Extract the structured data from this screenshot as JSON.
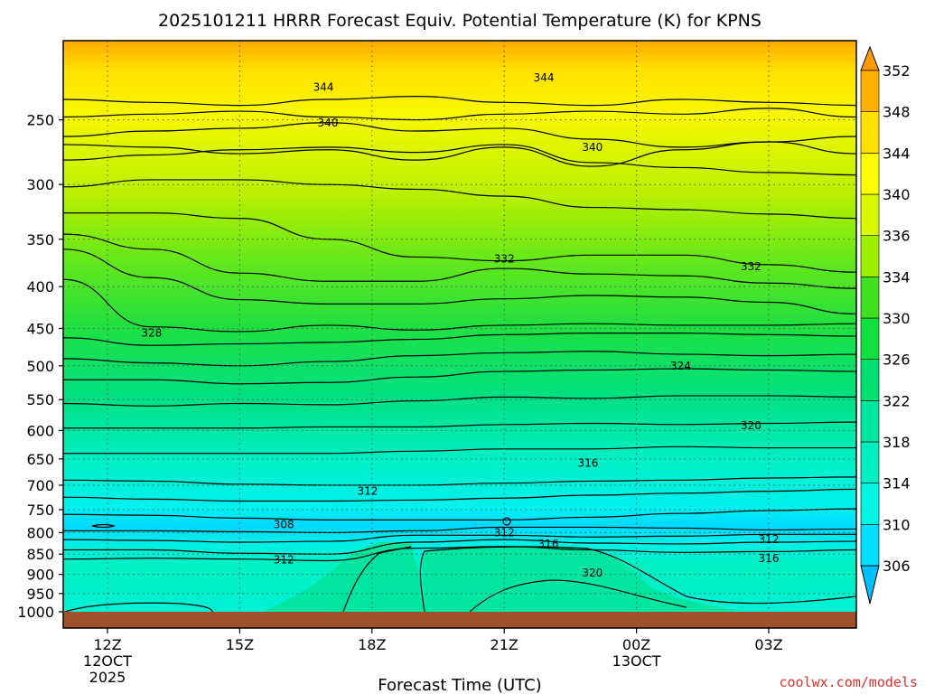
{
  "chart_data": {
    "type": "contour",
    "title": "2025101211 HRRR Forecast Equiv. Potential Temperature (K) for KPNS",
    "xlabel": "Forecast Time (UTC)",
    "ylabel": "",
    "y_scale": "log-pressure",
    "ylim": [
      1000,
      200
    ],
    "xlim": [
      11,
      29
    ],
    "grid": true,
    "y_ticks": [
      250,
      300,
      350,
      400,
      450,
      500,
      550,
      600,
      650,
      700,
      750,
      800,
      850,
      900,
      950,
      1000
    ],
    "x_ticks": [
      {
        "x": 12,
        "label": "12Z",
        "sub": [
          "12OCT",
          "2025"
        ]
      },
      {
        "x": 15,
        "label": "15Z",
        "sub": []
      },
      {
        "x": 18,
        "label": "18Z",
        "sub": []
      },
      {
        "x": 21,
        "label": "21Z",
        "sub": []
      },
      {
        "x": 24,
        "label": "00Z",
        "sub": [
          "13OCT"
        ]
      },
      {
        "x": 27,
        "label": "03Z",
        "sub": []
      }
    ],
    "colorbar": {
      "labels": [
        306,
        310,
        314,
        318,
        322,
        326,
        330,
        334,
        336,
        340,
        344,
        348,
        352
      ],
      "colors": [
        "#00bfff",
        "#00dfff",
        "#00f5e0",
        "#00eec0",
        "#00e8a0",
        "#00e070",
        "#10e040",
        "#40e020",
        "#9ff000",
        "#d8f800",
        "#ffff00",
        "#ffe000",
        "#ffb000",
        "#ff9a00"
      ]
    },
    "contour_labels": [
      {
        "label": "344",
        "x": 16.9,
        "p": 228
      },
      {
        "label": "344",
        "x": 21.9,
        "p": 222
      },
      {
        "label": "340",
        "x": 17.0,
        "p": 252
      },
      {
        "label": "340",
        "x": 23.0,
        "p": 270
      },
      {
        "label": "332",
        "x": 21.0,
        "p": 370
      },
      {
        "label": "332",
        "x": 26.6,
        "p": 378
      },
      {
        "label": "328",
        "x": 13.0,
        "p": 456
      },
      {
        "label": "324",
        "x": 25.0,
        "p": 500
      },
      {
        "label": "320",
        "x": 26.6,
        "p": 592
      },
      {
        "label": "316",
        "x": 22.9,
        "p": 658
      },
      {
        "label": "312",
        "x": 17.9,
        "p": 712
      },
      {
        "label": "308",
        "x": 16.0,
        "p": 782
      },
      {
        "label": "312",
        "x": 21.0,
        "p": 800
      },
      {
        "label": "316",
        "x": 22.0,
        "p": 826
      },
      {
        "label": "312",
        "x": 27.0,
        "p": 816
      },
      {
        "label": "312",
        "x": 16.0,
        "p": 864
      },
      {
        "label": "316",
        "x": 27.0,
        "p": 860
      },
      {
        "label": "320",
        "x": 23.0,
        "p": 896
      }
    ]
  },
  "watermark": "coolwx.com/models"
}
